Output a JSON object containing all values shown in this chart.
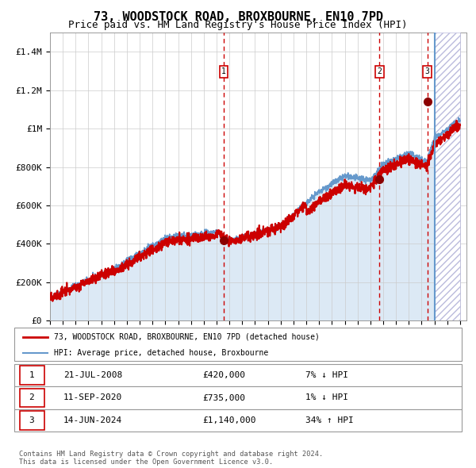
{
  "title": "73, WOODSTOCK ROAD, BROXBOURNE, EN10 7PD",
  "subtitle": "Price paid vs. HM Land Registry's House Price Index (HPI)",
  "xlim_start": 1995.0,
  "xlim_end": 2027.5,
  "ylim_min": 0,
  "ylim_max": 1500000,
  "yticks": [
    0,
    200000,
    400000,
    600000,
    800000,
    1000000,
    1200000,
    1400000
  ],
  "ytick_labels": [
    "£0",
    "£200K",
    "£400K",
    "£600K",
    "£800K",
    "£1M",
    "£1.2M",
    "£1.4M"
  ],
  "sale_dates": [
    2008.55,
    2020.7,
    2024.45
  ],
  "sale_prices": [
    420000,
    735000,
    1140000
  ],
  "sale_labels": [
    "1",
    "2",
    "3"
  ],
  "vline_color": "#cc0000",
  "sale_marker_color": "#8b0000",
  "forecast_start": 2025.0,
  "legend_entries": [
    {
      "label": "73, WOODSTOCK ROAD, BROXBOURNE, EN10 7PD (detached house)",
      "color": "#cc0000",
      "lw": 2
    },
    {
      "label": "HPI: Average price, detached house, Broxbourne",
      "color": "#6699cc",
      "lw": 1.5
    }
  ],
  "table_data": [
    {
      "num": "1",
      "date": "21-JUL-2008",
      "price": "£420,000",
      "hpi": "7% ↓ HPI"
    },
    {
      "num": "2",
      "date": "11-SEP-2020",
      "price": "£735,000",
      "hpi": "1% ↓ HPI"
    },
    {
      "num": "3",
      "date": "14-JUN-2024",
      "price": "£1,140,000",
      "hpi": "34% ↑ HPI"
    }
  ],
  "footer": "Contains HM Land Registry data © Crown copyright and database right 2024.\nThis data is licensed under the Open Government Licence v3.0.",
  "bg_fill_color": "#dce9f5",
  "hatch_color": "#aaaacc",
  "grid_color": "#cccccc",
  "title_fontsize": 11,
  "subtitle_fontsize": 9,
  "tick_fontsize": 8
}
